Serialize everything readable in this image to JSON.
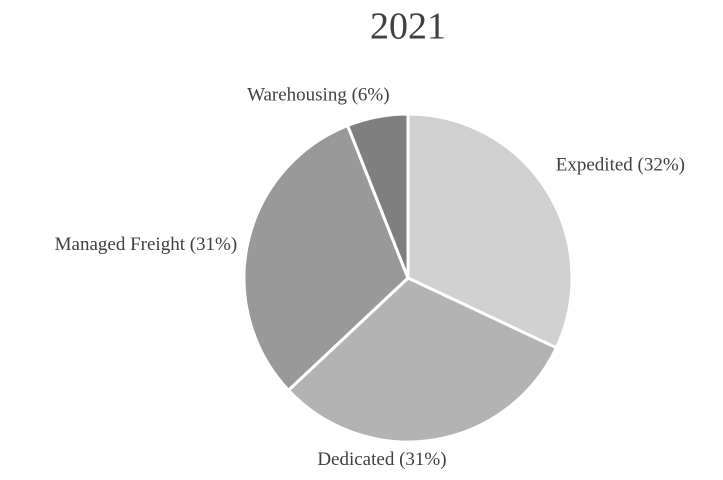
{
  "chart_data": {
    "type": "pie",
    "title": "2021",
    "values": [
      32,
      31,
      31,
      6
    ],
    "value_labels": [
      "Expedited (32%)",
      "Dedicated (31%)",
      "Managed Freight (31%)",
      "Warehousing (6%)"
    ],
    "colors": [
      "#d0d0d0",
      "#b3b3b3",
      "#999999",
      "#7f7f7f"
    ]
  }
}
